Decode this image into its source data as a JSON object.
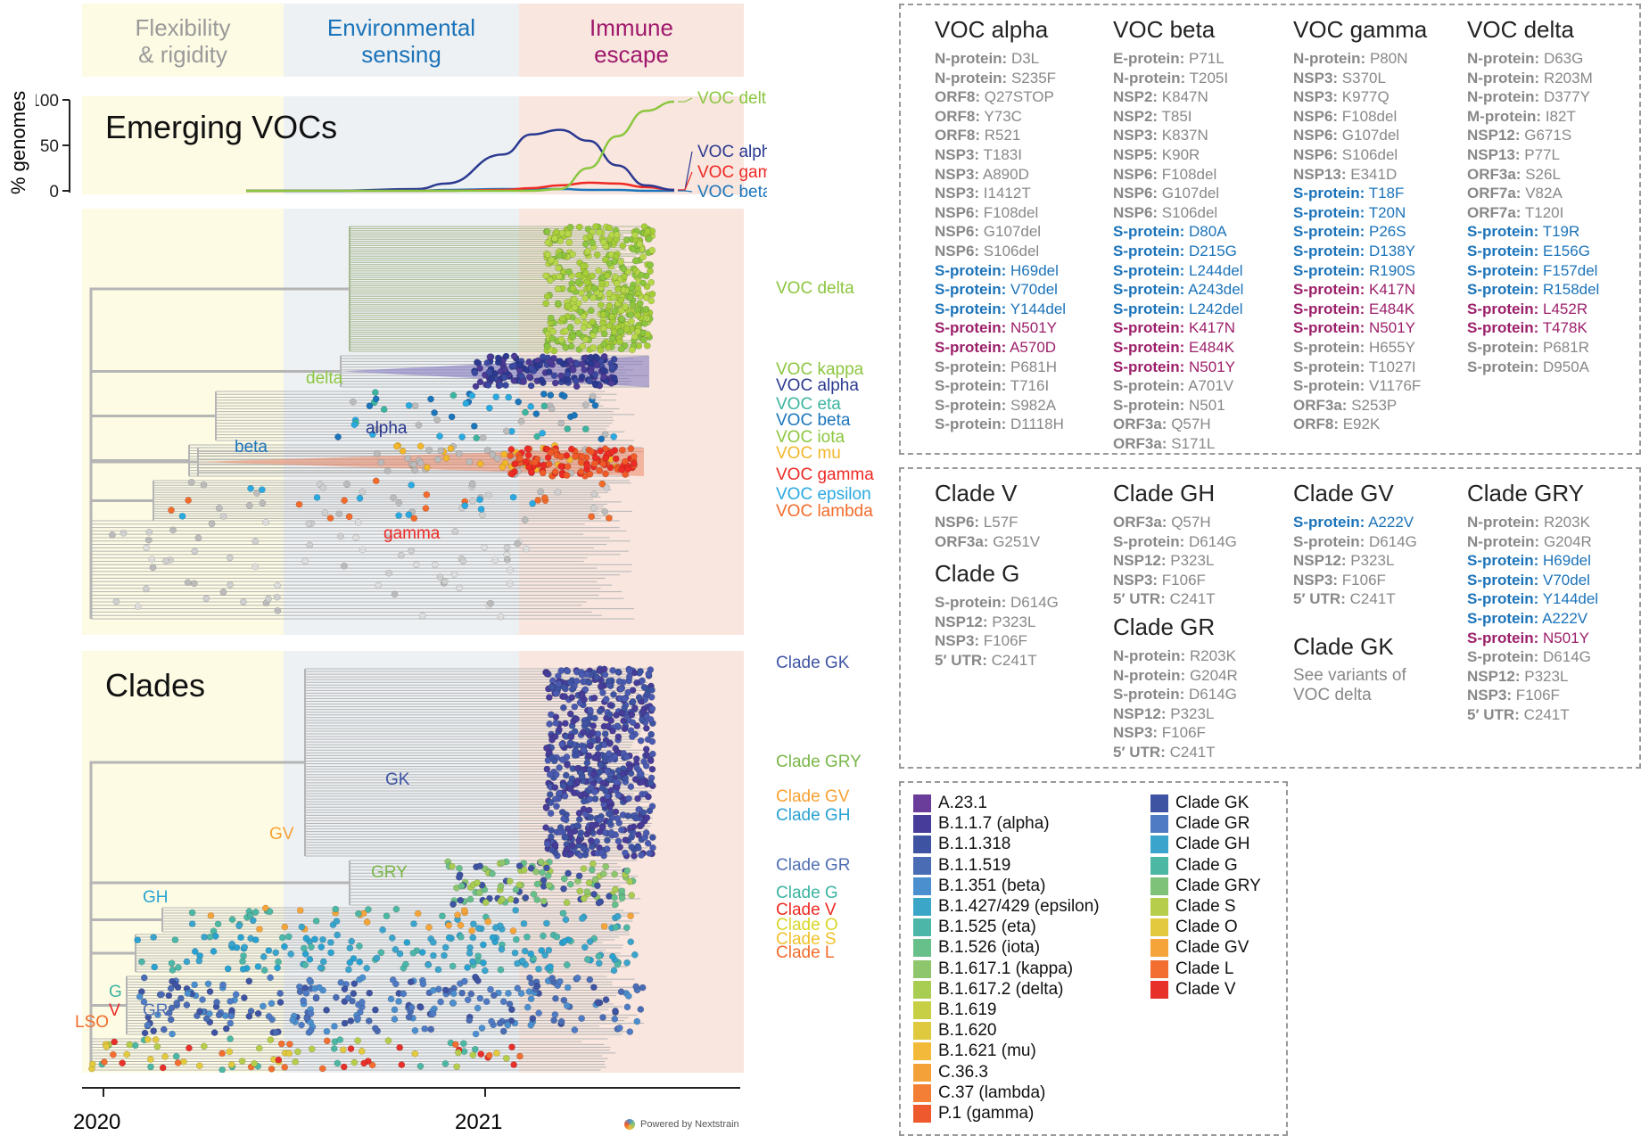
{
  "periods": [
    {
      "label": "Flexibility\n& rigidity",
      "color": "#9a9a9a",
      "bg": "#fdfbe4"
    },
    {
      "label": "Environmental\nsensing",
      "color": "#1b73b9",
      "bg": "#edf1f4"
    },
    {
      "label": "Immune\nescape",
      "color": "#a0186b",
      "bg": "#f8e6df"
    }
  ],
  "voc_panel": {
    "title": "Emerging VOCs",
    "ylabel": "% genomes",
    "yticks": [
      "100",
      "50",
      "0"
    ]
  },
  "chart_data": {
    "type": "line",
    "ylabel": "% genomes",
    "ylim": [
      0,
      100
    ],
    "x": [
      "2020-06",
      "2020-09",
      "2020-12",
      "2021-01",
      "2021-03",
      "2021-04",
      "2021-05",
      "2021-06",
      "2021-07",
      "2021-08",
      "2021-09"
    ],
    "series": [
      {
        "name": "VOC delta",
        "color": "#8cc63f",
        "values": [
          0,
          0,
          0,
          0,
          0,
          0,
          2,
          25,
          60,
          88,
          98
        ]
      },
      {
        "name": "VOC alpha",
        "color": "#2b3990",
        "values": [
          0,
          0,
          2,
          8,
          40,
          62,
          67,
          55,
          28,
          6,
          1
        ]
      },
      {
        "name": "VOC gamma",
        "color": "#ee2a24",
        "values": [
          0,
          0,
          0,
          0,
          1,
          3,
          6,
          9,
          8,
          4,
          1
        ]
      },
      {
        "name": "VOC beta",
        "color": "#1b75bb",
        "values": [
          0,
          0,
          0,
          1,
          2,
          2,
          2,
          1,
          1,
          0,
          0
        ]
      }
    ]
  },
  "voc_tree_labels": [
    {
      "text": "VOC delta",
      "color": "#8cc63f"
    },
    {
      "text": "VOC kappa",
      "color": "#8cc63f"
    },
    {
      "text": "VOC alpha",
      "color": "#2b3990"
    },
    {
      "text": "VOC eta",
      "color": "#3cb4a0"
    },
    {
      "text": "VOC beta",
      "color": "#1b75bb"
    },
    {
      "text": "VOC iota",
      "color": "#8cc63f"
    },
    {
      "text": "VOC mu",
      "color": "#f2b72b"
    },
    {
      "text": "VOC gamma",
      "color": "#ee2a24"
    },
    {
      "text": "VOC epsilon",
      "color": "#29a9e0"
    },
    {
      "text": "VOC lambda",
      "color": "#f26b2b"
    }
  ],
  "voc_tree_nodes": [
    {
      "text": "delta",
      "color": "#8cc63f"
    },
    {
      "text": "alpha",
      "color": "#2b3990"
    },
    {
      "text": "beta",
      "color": "#1b75bb"
    },
    {
      "text": "gamma",
      "color": "#ee2a24"
    }
  ],
  "clade_panel": {
    "title": "Clades"
  },
  "clade_tree_labels": [
    {
      "text": "Clade GK",
      "color": "#3e54a3"
    },
    {
      "text": "Clade GRY",
      "color": "#7ab648"
    },
    {
      "text": "Clade GV",
      "color": "#f7a133"
    },
    {
      "text": "Clade GH",
      "color": "#29a2d1"
    },
    {
      "text": "Clade GR",
      "color": "#4f6fb3"
    },
    {
      "text": "Clade G",
      "color": "#3cb4a0"
    },
    {
      "text": "Clade V",
      "color": "#ee2a24"
    },
    {
      "text": "Clade O",
      "color": "#d9d62b"
    },
    {
      "text": "Clade S",
      "color": "#f2c12b"
    },
    {
      "text": "Clade L",
      "color": "#f26b2b"
    }
  ],
  "clade_tree_nodes": [
    {
      "text": "GK",
      "color": "#3e54a3"
    },
    {
      "text": "GV",
      "color": "#f7a133"
    },
    {
      "text": "GRY",
      "color": "#7ab648"
    },
    {
      "text": "GH",
      "color": "#29a2d1"
    },
    {
      "text": "G",
      "color": "#3cb4a0"
    },
    {
      "text": "V",
      "color": "#ee2a24"
    },
    {
      "text": "LSO",
      "color": "#f26b2b"
    },
    {
      "text": "GR",
      "color": "#4f6fb3"
    }
  ],
  "xaxis": {
    "ticks": [
      "2020",
      "2021"
    ]
  },
  "credit": "Powered by Nextstrain",
  "voc_mutations": [
    {
      "title": "VOC alpha",
      "items": [
        {
          "gene": "N-protein:",
          "mut": "D3L",
          "c": "gray"
        },
        {
          "gene": "N-protein:",
          "mut": "S235F",
          "c": "gray"
        },
        {
          "gene": "ORF8:",
          "mut": "Q27STOP",
          "c": "gray"
        },
        {
          "gene": "ORF8:",
          "mut": "Y73C",
          "c": "gray"
        },
        {
          "gene": "ORF8:",
          "mut": "R521",
          "c": "gray"
        },
        {
          "gene": "NSP3:",
          "mut": "T183I",
          "c": "gray"
        },
        {
          "gene": "NSP3:",
          "mut": "A890D",
          "c": "gray"
        },
        {
          "gene": "NSP3:",
          "mut": "I1412T",
          "c": "gray"
        },
        {
          "gene": "NSP6:",
          "mut": "F108del",
          "c": "gray"
        },
        {
          "gene": "NSP6:",
          "mut": "G107del",
          "c": "gray"
        },
        {
          "gene": "NSP6:",
          "mut": "S106del",
          "c": "gray"
        },
        {
          "gene": "S-protein:",
          "mut": "H69del",
          "c": "blue"
        },
        {
          "gene": "S-protein:",
          "mut": "V70del",
          "c": "blue"
        },
        {
          "gene": "S-protein:",
          "mut": "Y144del",
          "c": "blue"
        },
        {
          "gene": "S-protein:",
          "mut": "N501Y",
          "c": "mag"
        },
        {
          "gene": "S-protein:",
          "mut": "A570D",
          "c": "mag"
        },
        {
          "gene": "S-protein:",
          "mut": "P681H",
          "c": "gray"
        },
        {
          "gene": "S-protein:",
          "mut": "T716I",
          "c": "gray"
        },
        {
          "gene": "S-protein:",
          "mut": "S982A",
          "c": "gray"
        },
        {
          "gene": "S-protein:",
          "mut": "D1118H",
          "c": "gray"
        }
      ]
    },
    {
      "title": "VOC beta",
      "items": [
        {
          "gene": "E-protein:",
          "mut": "P71L",
          "c": "gray"
        },
        {
          "gene": "N-protein:",
          "mut": "T205I",
          "c": "gray"
        },
        {
          "gene": "NSP2:",
          "mut": "K847N",
          "c": "gray"
        },
        {
          "gene": "NSP2:",
          "mut": "T85I",
          "c": "gray"
        },
        {
          "gene": "NSP3:",
          "mut": "K837N",
          "c": "gray"
        },
        {
          "gene": "NSP5:",
          "mut": "K90R",
          "c": "gray"
        },
        {
          "gene": "NSP6:",
          "mut": "F108del",
          "c": "gray"
        },
        {
          "gene": "NSP6:",
          "mut": "G107del",
          "c": "gray"
        },
        {
          "gene": "NSP6:",
          "mut": "S106del",
          "c": "gray"
        },
        {
          "gene": "S-protein:",
          "mut": "D80A",
          "c": "blue"
        },
        {
          "gene": "S-protein:",
          "mut": "D215G",
          "c": "blue"
        },
        {
          "gene": "S-protein:",
          "mut": "L244del",
          "c": "blue"
        },
        {
          "gene": "S-protein:",
          "mut": "A243del",
          "c": "blue"
        },
        {
          "gene": "S-protein:",
          "mut": "L242del",
          "c": "blue"
        },
        {
          "gene": "S-protein:",
          "mut": "K417N",
          "c": "mag"
        },
        {
          "gene": "S-protein:",
          "mut": "E484K",
          "c": "mag"
        },
        {
          "gene": "S-protein:",
          "mut": "N501Y",
          "c": "mag"
        },
        {
          "gene": "S-protein:",
          "mut": "A701V",
          "c": "gray"
        },
        {
          "gene": "S-protein:",
          "mut": "N501",
          "c": "gray"
        },
        {
          "gene": "ORF3a:",
          "mut": "Q57H",
          "c": "gray"
        },
        {
          "gene": "ORF3a:",
          "mut": "S171L",
          "c": "gray"
        }
      ]
    },
    {
      "title": "VOC gamma",
      "items": [
        {
          "gene": "N-protein:",
          "mut": "P80N",
          "c": "gray"
        },
        {
          "gene": "NSP3:",
          "mut": "S370L",
          "c": "gray"
        },
        {
          "gene": "NSP3:",
          "mut": "K977Q",
          "c": "gray"
        },
        {
          "gene": "NSP6:",
          "mut": "F108del",
          "c": "gray"
        },
        {
          "gene": "NSP6:",
          "mut": "G107del",
          "c": "gray"
        },
        {
          "gene": "NSP6:",
          "mut": "S106del",
          "c": "gray"
        },
        {
          "gene": "NSP13:",
          "mut": "E341D",
          "c": "gray"
        },
        {
          "gene": "S-protein:",
          "mut": "T18F",
          "c": "blue"
        },
        {
          "gene": "S-protein:",
          "mut": "T20N",
          "c": "blue"
        },
        {
          "gene": "S-protein:",
          "mut": "P26S",
          "c": "blue"
        },
        {
          "gene": "S-protein:",
          "mut": "D138Y",
          "c": "blue"
        },
        {
          "gene": "S-protein:",
          "mut": "R190S",
          "c": "blue"
        },
        {
          "gene": "S-protein:",
          "mut": "K417N",
          "c": "mag"
        },
        {
          "gene": "S-protein:",
          "mut": "E484K",
          "c": "mag"
        },
        {
          "gene": "S-protein:",
          "mut": "N501Y",
          "c": "mag"
        },
        {
          "gene": "S-protein:",
          "mut": "H655Y",
          "c": "gray"
        },
        {
          "gene": "S-protein:",
          "mut": "T1027I",
          "c": "gray"
        },
        {
          "gene": "S-protein:",
          "mut": "V1176F",
          "c": "gray"
        },
        {
          "gene": "ORF3a:",
          "mut": "S253P",
          "c": "gray"
        },
        {
          "gene": "ORF8:",
          "mut": "E92K",
          "c": "gray"
        }
      ]
    },
    {
      "title": "VOC delta",
      "items": [
        {
          "gene": "N-protein:",
          "mut": "D63G",
          "c": "gray"
        },
        {
          "gene": "N-protein:",
          "mut": "R203M",
          "c": "gray"
        },
        {
          "gene": "N-protein:",
          "mut": "D377Y",
          "c": "gray"
        },
        {
          "gene": "M-protein:",
          "mut": "I82T",
          "c": "gray"
        },
        {
          "gene": "NSP12:",
          "mut": "G671S",
          "c": "gray"
        },
        {
          "gene": "NSP13:",
          "mut": "P77L",
          "c": "gray"
        },
        {
          "gene": "ORF3a:",
          "mut": "S26L",
          "c": "gray"
        },
        {
          "gene": "ORF7a:",
          "mut": "V82A",
          "c": "gray"
        },
        {
          "gene": "ORF7a:",
          "mut": "T120I",
          "c": "gray"
        },
        {
          "gene": "S-protein:",
          "mut": "T19R",
          "c": "blue"
        },
        {
          "gene": "S-protein:",
          "mut": "E156G",
          "c": "blue"
        },
        {
          "gene": "S-protein:",
          "mut": "F157del",
          "c": "blue"
        },
        {
          "gene": "S-protein:",
          "mut": "R158del",
          "c": "blue"
        },
        {
          "gene": "S-protein:",
          "mut": "L452R",
          "c": "mag"
        },
        {
          "gene": "S-protein:",
          "mut": "T478K",
          "c": "mag"
        },
        {
          "gene": "S-protein:",
          "mut": "P681R",
          "c": "gray"
        },
        {
          "gene": "S-protein:",
          "mut": "D950A",
          "c": "gray"
        }
      ]
    }
  ],
  "clade_mutations": [
    [
      {
        "title": "Clade V",
        "items": [
          {
            "gene": "NSP6:",
            "mut": "L57F",
            "c": "gray"
          },
          {
            "gene": "ORF3a:",
            "mut": "G251V",
            "c": "gray"
          }
        ]
      },
      {
        "title": "Clade G",
        "items": [
          {
            "gene": "S-protein:",
            "mut": "D614G",
            "c": "gray"
          },
          {
            "gene": "NSP12:",
            "mut": "P323L",
            "c": "gray"
          },
          {
            "gene": "NSP3:",
            "mut": "F106F",
            "c": "gray"
          },
          {
            "gene": "5′ UTR:",
            "mut": "C241T",
            "c": "gray"
          }
        ]
      }
    ],
    [
      {
        "title": "Clade GH",
        "items": [
          {
            "gene": "ORF3a:",
            "mut": "Q57H",
            "c": "gray"
          },
          {
            "gene": "S-protein:",
            "mut": "D614G",
            "c": "gray"
          },
          {
            "gene": "NSP12:",
            "mut": "P323L",
            "c": "gray"
          },
          {
            "gene": "NSP3:",
            "mut": "F106F",
            "c": "gray"
          },
          {
            "gene": "5′ UTR:",
            "mut": "C241T",
            "c": "gray"
          }
        ]
      },
      {
        "title": "Clade GR",
        "items": [
          {
            "gene": "N-protein:",
            "mut": "R203K",
            "c": "gray"
          },
          {
            "gene": "N-protein:",
            "mut": "G204R",
            "c": "gray"
          },
          {
            "gene": "S-protein:",
            "mut": "D614G",
            "c": "gray"
          },
          {
            "gene": "NSP12:",
            "mut": "P323L",
            "c": "gray"
          },
          {
            "gene": "NSP3:",
            "mut": "F106F",
            "c": "gray"
          },
          {
            "gene": "5′ UTR:",
            "mut": "C241T",
            "c": "gray"
          }
        ]
      }
    ],
    [
      {
        "title": "Clade GV",
        "items": [
          {
            "gene": "S-protein:",
            "mut": "A222V",
            "c": "blue"
          },
          {
            "gene": "S-protein:",
            "mut": "D614G",
            "c": "gray"
          },
          {
            "gene": "NSP12:",
            "mut": "P323L",
            "c": "gray"
          },
          {
            "gene": "NSP3:",
            "mut": "F106F",
            "c": "gray"
          },
          {
            "gene": "5′ UTR:",
            "mut": "C241T",
            "c": "gray"
          }
        ]
      },
      {
        "title": "Clade GK",
        "note": "See variants of\nVOC delta",
        "items": []
      }
    ],
    [
      {
        "title": "Clade GRY",
        "items": [
          {
            "gene": "N-protein:",
            "mut": "R203K",
            "c": "gray"
          },
          {
            "gene": "N-protein:",
            "mut": "G204R",
            "c": "gray"
          },
          {
            "gene": "S-protein:",
            "mut": "H69del",
            "c": "blue"
          },
          {
            "gene": "S-protein:",
            "mut": "V70del",
            "c": "blue"
          },
          {
            "gene": "S-protein:",
            "mut": "Y144del",
            "c": "blue"
          },
          {
            "gene": "S-protein:",
            "mut": "A222V",
            "c": "blue"
          },
          {
            "gene": "S-protein:",
            "mut": "N501Y",
            "c": "mag"
          },
          {
            "gene": "S-protein:",
            "mut": "D614G",
            "c": "gray"
          },
          {
            "gene": "NSP12:",
            "mut": "P323L",
            "c": "gray"
          },
          {
            "gene": "NSP3:",
            "mut": "F106F",
            "c": "gray"
          },
          {
            "gene": "5′ UTR:",
            "mut": "C241T",
            "c": "gray"
          }
        ]
      }
    ]
  ],
  "legend_left": [
    {
      "label": "A.23.1",
      "color": "#6a3d9a"
    },
    {
      "label": "B.1.1.7 (alpha)",
      "color": "#473c99"
    },
    {
      "label": "B.1.1.318",
      "color": "#3e54a3"
    },
    {
      "label": "B.1.1.519",
      "color": "#4a6cb5"
    },
    {
      "label": "B.1.351 (beta)",
      "color": "#4c8fcf"
    },
    {
      "label": "B.1.427/429 (epsilon)",
      "color": "#3ba6c8"
    },
    {
      "label": "B.1.525 (eta)",
      "color": "#4cb7a8"
    },
    {
      "label": "B.1.526 (iota)",
      "color": "#67bf8a"
    },
    {
      "label": "B.1.617.1 (kappa)",
      "color": "#8dc66d"
    },
    {
      "label": "B.1.617.2 (delta)",
      "color": "#a9cc52"
    },
    {
      "label": "B.1.619",
      "color": "#c7cf45"
    },
    {
      "label": "B.1.620",
      "color": "#dfc93f"
    },
    {
      "label": "B.1.621 (mu)",
      "color": "#f2b93a"
    },
    {
      "label": "C.36.3",
      "color": "#f5a13a"
    },
    {
      "label": "C.37 (lambda)",
      "color": "#f27f35"
    },
    {
      "label": "P.1 (gamma)",
      "color": "#ee5a2d"
    }
  ],
  "legend_right": [
    {
      "label": "Clade GK",
      "color": "#3e54a3"
    },
    {
      "label": "Clade GR",
      "color": "#4f7bc4"
    },
    {
      "label": "Clade GH",
      "color": "#3aa4cc"
    },
    {
      "label": "Clade G",
      "color": "#4cb7a3"
    },
    {
      "label": "Clade GRY",
      "color": "#7ec27a"
    },
    {
      "label": "Clade S",
      "color": "#b5cd4a"
    },
    {
      "label": "Clade O",
      "color": "#e2c93e"
    },
    {
      "label": "Clade GV",
      "color": "#f5a43a"
    },
    {
      "label": "Clade L",
      "color": "#f26e31"
    },
    {
      "label": "Clade V",
      "color": "#e8302a"
    }
  ]
}
